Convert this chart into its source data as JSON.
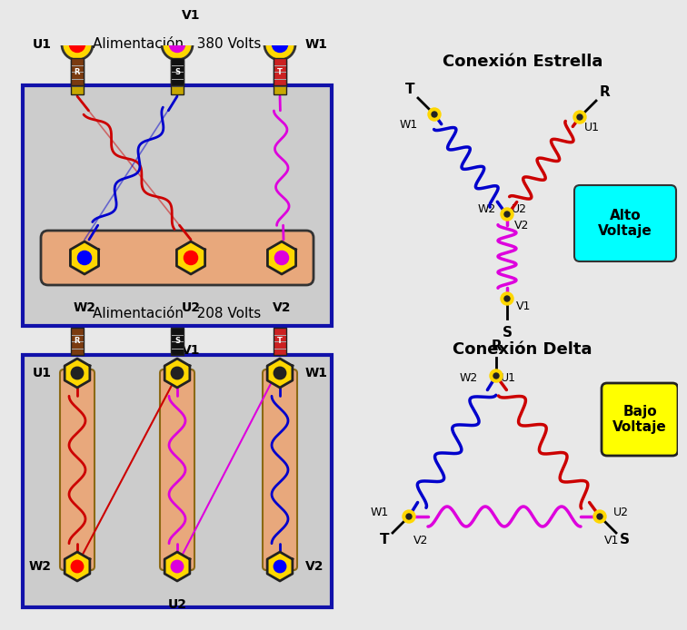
{
  "bg_color": "#e8e8e8",
  "title_380": "Alimentación   380 Volts",
  "title_208": "Alimentación   208 Volts",
  "title_star": "Conexión Estrella",
  "title_delta": "Conexión Delta",
  "alto_voltaje": "Alto\nVoltaje",
  "bajo_voltaje": "Bajo\nVoltaje",
  "color_R_plug": "#cc2222",
  "color_S_plug": "#111111",
  "color_T_plug": "#7B3B10",
  "color_coil_blue": "#0000cc",
  "color_coil_red": "#cc0000",
  "color_coil_pink": "#dd00dd",
  "color_terminal_yellow": "#FFD700",
  "color_bus": "#e8a87c",
  "color_box_bg": "#cccccc",
  "color_box_border": "#1111aa",
  "color_hex_border": "#222222"
}
